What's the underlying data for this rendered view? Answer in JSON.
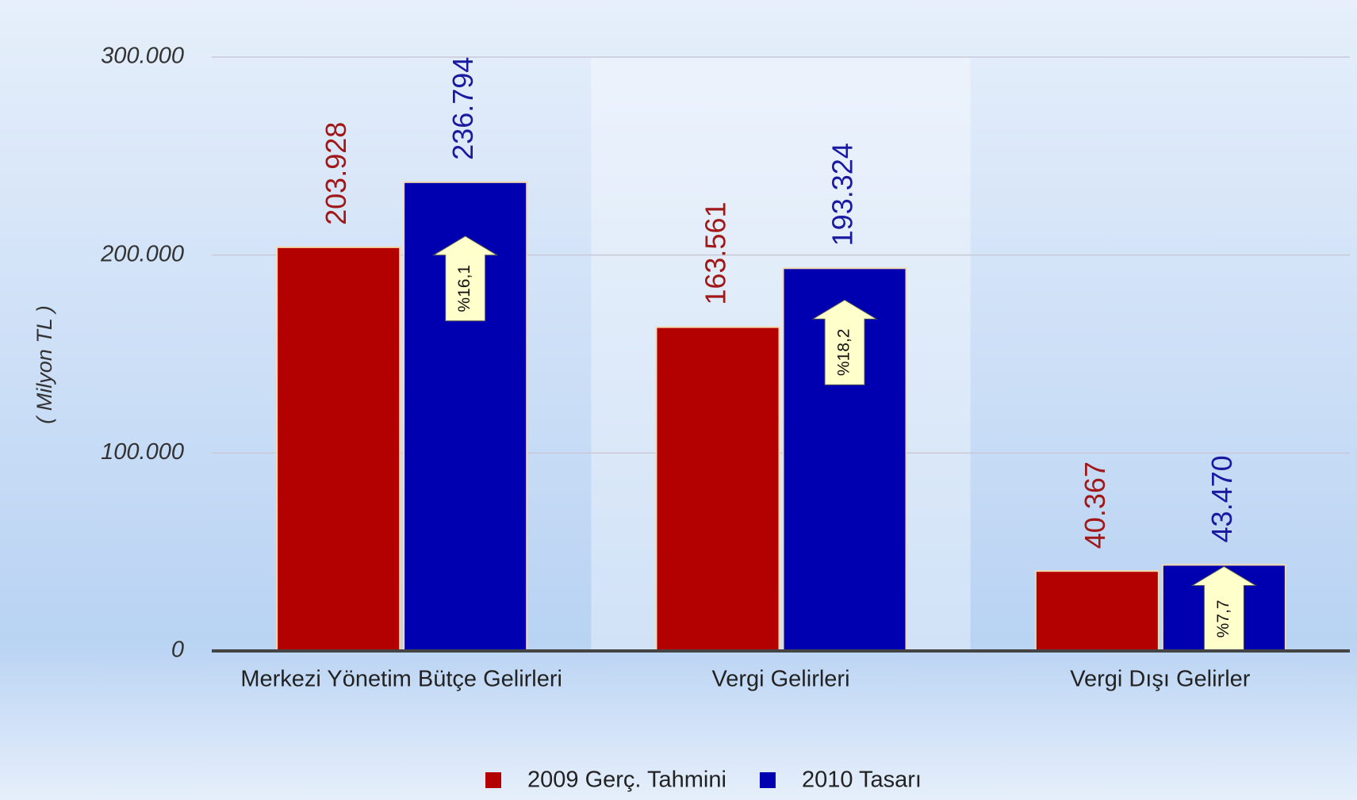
{
  "chart_data": {
    "type": "bar",
    "y_label": "( Milyon TL )",
    "categories": [
      "Merkezi Yönetim Bütçe Gelirleri",
      "Vergi Gelirleri",
      "Vergi Dışı Gelirler"
    ],
    "series": [
      {
        "name": "2009 Gerç. Tahmini",
        "color": "#b30000",
        "values": [
          203928,
          163561,
          40367
        ],
        "value_labels": [
          "203.928",
          "163.561",
          "40.367"
        ]
      },
      {
        "name": "2010 Tasarı",
        "color": "#0000b0",
        "values": [
          236794,
          193324,
          43470
        ],
        "value_labels": [
          "236.794",
          "193.324",
          "43.470"
        ]
      }
    ],
    "annotations": [
      "%16,1",
      "%18,2",
      "%7,7"
    ],
    "ylim": [
      0,
      300000
    ],
    "yticks": [
      {
        "value": 0,
        "label": "0"
      },
      {
        "value": 100000,
        "label": "100.000"
      },
      {
        "value": 200000,
        "label": "200.000"
      },
      {
        "value": 300000,
        "label": "300.000"
      }
    ],
    "grid": true
  }
}
